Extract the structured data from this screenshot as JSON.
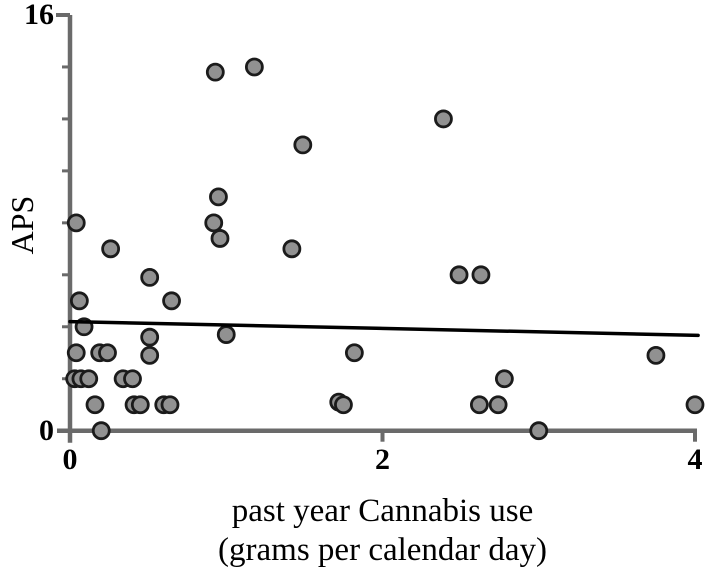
{
  "figure": {
    "background": "#ffffff",
    "axis_color": "#6a6a6a",
    "point_fill": "#919191",
    "point_stroke": "#1b1b1b",
    "regression_color": "#000000",
    "text_color": "#000000"
  },
  "chart_data": {
    "type": "scatter",
    "title": "",
    "xlabel_line1": "past year Cannabis use",
    "xlabel_line2": "(grams per calendar day)",
    "ylabel": "APS",
    "xlim": [
      0,
      4
    ],
    "ylim": [
      0,
      16
    ],
    "xticks": [
      0,
      2,
      4
    ],
    "yticks_labeled": [
      0,
      16
    ],
    "yticks_minor": [
      2,
      4,
      6,
      8,
      10,
      12,
      14
    ],
    "grid": false,
    "legend": false,
    "points": [
      [
        0.93,
        13.8
      ],
      [
        1.18,
        14.0
      ],
      [
        2.39,
        12.0
      ],
      [
        1.49,
        11.0
      ],
      [
        0.95,
        9.0
      ],
      [
        0.04,
        8.0
      ],
      [
        0.92,
        8.0
      ],
      [
        0.96,
        7.4
      ],
      [
        0.26,
        7.0
      ],
      [
        1.42,
        7.0
      ],
      [
        0.51,
        5.9
      ],
      [
        2.49,
        6.0
      ],
      [
        2.63,
        6.0
      ],
      [
        0.06,
        5.0
      ],
      [
        0.65,
        5.0
      ],
      [
        0.09,
        4.0
      ],
      [
        0.51,
        3.6
      ],
      [
        1.0,
        3.7
      ],
      [
        0.04,
        3.0
      ],
      [
        0.19,
        3.0
      ],
      [
        0.24,
        3.0
      ],
      [
        0.51,
        2.9
      ],
      [
        1.82,
        3.0
      ],
      [
        3.75,
        2.9
      ],
      [
        0.03,
        2.0
      ],
      [
        0.07,
        2.0
      ],
      [
        0.12,
        2.0
      ],
      [
        0.34,
        2.0
      ],
      [
        0.4,
        2.0
      ],
      [
        2.78,
        2.0
      ],
      [
        0.16,
        1.0
      ],
      [
        0.41,
        1.0
      ],
      [
        0.45,
        1.0
      ],
      [
        0.6,
        1.0
      ],
      [
        0.64,
        1.0
      ],
      [
        1.72,
        1.1
      ],
      [
        1.75,
        1.0
      ],
      [
        2.62,
        1.0
      ],
      [
        2.74,
        1.0
      ],
      [
        4.0,
        1.0
      ],
      [
        0.2,
        0.0
      ],
      [
        3.0,
        0.0
      ]
    ],
    "regression_line": {
      "x1": 0.0,
      "y1": 4.2,
      "x2": 4.02,
      "y2": 3.67
    }
  }
}
